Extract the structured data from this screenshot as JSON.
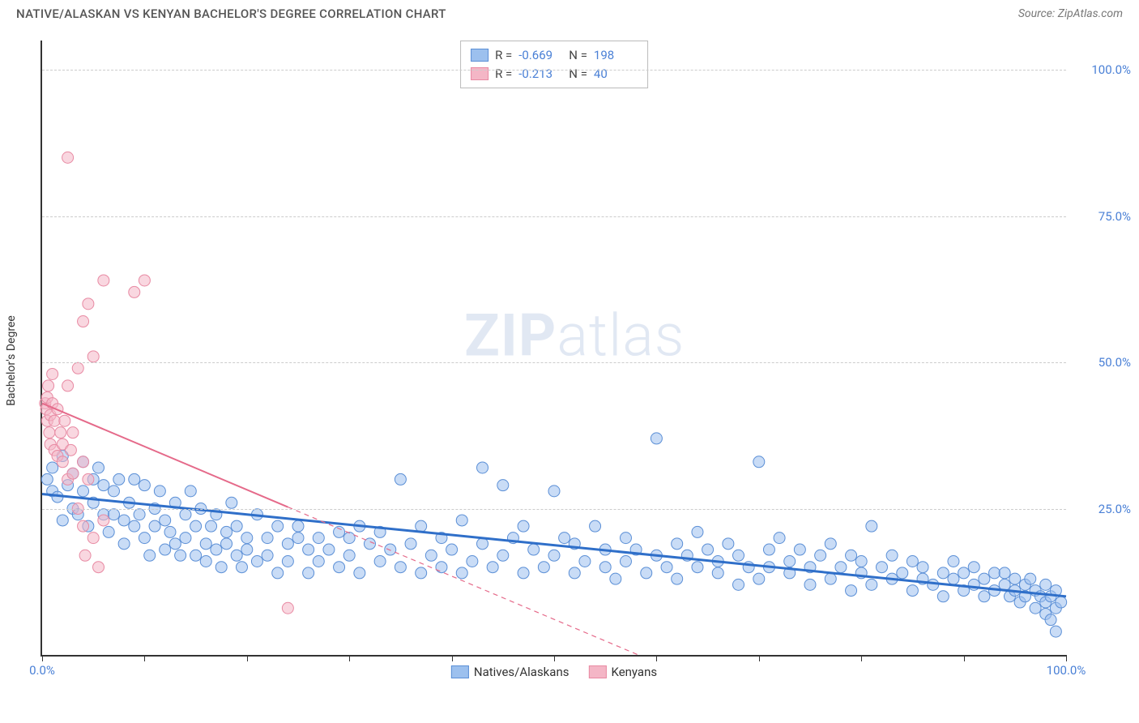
{
  "header": {
    "title": "NATIVE/ALASKAN VS KENYAN BACHELOR'S DEGREE CORRELATION CHART",
    "source_label": "Source:",
    "source_name": "ZipAtlas.com"
  },
  "watermark": {
    "part1": "ZIP",
    "part2": "atlas"
  },
  "chart": {
    "type": "scatter",
    "y_axis_label": "Bachelor's Degree",
    "xlim": [
      0,
      100
    ],
    "ylim": [
      0,
      105
    ],
    "x_ticks": [
      0,
      10,
      20,
      30,
      40,
      50,
      60,
      70,
      80,
      90,
      100
    ],
    "x_tick_labels_visible": {
      "0": "0.0%",
      "100": "100.0%"
    },
    "y_gridlines": [
      25,
      50,
      75,
      100
    ],
    "y_tick_labels": {
      "25": "25.0%",
      "50": "50.0%",
      "75": "75.0%",
      "100": "100.0%"
    },
    "background_color": "#ffffff",
    "grid_color": "#cccccc",
    "axis_color": "#333333",
    "tick_label_color": "#4a80d6",
    "marker_radius": 7,
    "marker_opacity": 0.55,
    "series": [
      {
        "key": "natives",
        "label": "Natives/Alaskans",
        "fill_color": "#9cc0ee",
        "stroke_color": "#5b8fd6",
        "trend_color": "#2f6fc9",
        "trend_width": 3,
        "trend_dash": "none",
        "trend": {
          "x1": 0,
          "y1": 27.5,
          "x2": 100,
          "y2": 10
        },
        "stats": {
          "R": "-0.669",
          "N": "198"
        },
        "points": [
          [
            0.5,
            30
          ],
          [
            1,
            32
          ],
          [
            1,
            28
          ],
          [
            1.5,
            27
          ],
          [
            2,
            23
          ],
          [
            2,
            34
          ],
          [
            2.5,
            29
          ],
          [
            3,
            31
          ],
          [
            3,
            25
          ],
          [
            3.5,
            24
          ],
          [
            4,
            33
          ],
          [
            4,
            28
          ],
          [
            4.5,
            22
          ],
          [
            5,
            30
          ],
          [
            5,
            26
          ],
          [
            5.5,
            32
          ],
          [
            6,
            24
          ],
          [
            6,
            29
          ],
          [
            6.5,
            21
          ],
          [
            7,
            24
          ],
          [
            7,
            28
          ],
          [
            7.5,
            30
          ],
          [
            8,
            23
          ],
          [
            8,
            19
          ],
          [
            8.5,
            26
          ],
          [
            9,
            22
          ],
          [
            9,
            30
          ],
          [
            9.5,
            24
          ],
          [
            10,
            20
          ],
          [
            10,
            29
          ],
          [
            10.5,
            17
          ],
          [
            11,
            25
          ],
          [
            11,
            22
          ],
          [
            11.5,
            28
          ],
          [
            12,
            18
          ],
          [
            12,
            23
          ],
          [
            12.5,
            21
          ],
          [
            13,
            26
          ],
          [
            13,
            19
          ],
          [
            13.5,
            17
          ],
          [
            14,
            24
          ],
          [
            14,
            20
          ],
          [
            14.5,
            28
          ],
          [
            15,
            17
          ],
          [
            15,
            22
          ],
          [
            15.5,
            25
          ],
          [
            16,
            19
          ],
          [
            16,
            16
          ],
          [
            16.5,
            22
          ],
          [
            17,
            24
          ],
          [
            17,
            18
          ],
          [
            17.5,
            15
          ],
          [
            18,
            21
          ],
          [
            18,
            19
          ],
          [
            18.5,
            26
          ],
          [
            19,
            17
          ],
          [
            19,
            22
          ],
          [
            19.5,
            15
          ],
          [
            20,
            20
          ],
          [
            20,
            18
          ],
          [
            21,
            24
          ],
          [
            21,
            16
          ],
          [
            22,
            20
          ],
          [
            22,
            17
          ],
          [
            23,
            22
          ],
          [
            23,
            14
          ],
          [
            24,
            19
          ],
          [
            24,
            16
          ],
          [
            25,
            20
          ],
          [
            25,
            22
          ],
          [
            26,
            14
          ],
          [
            26,
            18
          ],
          [
            27,
            20
          ],
          [
            27,
            16
          ],
          [
            28,
            18
          ],
          [
            29,
            21
          ],
          [
            29,
            15
          ],
          [
            30,
            17
          ],
          [
            30,
            20
          ],
          [
            31,
            22
          ],
          [
            31,
            14
          ],
          [
            32,
            19
          ],
          [
            33,
            16
          ],
          [
            33,
            21
          ],
          [
            34,
            18
          ],
          [
            35,
            30
          ],
          [
            35,
            15
          ],
          [
            36,
            19
          ],
          [
            37,
            22
          ],
          [
            37,
            14
          ],
          [
            38,
            17
          ],
          [
            39,
            20
          ],
          [
            39,
            15
          ],
          [
            40,
            18
          ],
          [
            41,
            23
          ],
          [
            41,
            14
          ],
          [
            42,
            16
          ],
          [
            43,
            32
          ],
          [
            43,
            19
          ],
          [
            44,
            15
          ],
          [
            45,
            29
          ],
          [
            45,
            17
          ],
          [
            46,
            20
          ],
          [
            47,
            14
          ],
          [
            47,
            22
          ],
          [
            48,
            18
          ],
          [
            49,
            15
          ],
          [
            50,
            28
          ],
          [
            50,
            17
          ],
          [
            51,
            20
          ],
          [
            52,
            14
          ],
          [
            52,
            19
          ],
          [
            53,
            16
          ],
          [
            54,
            22
          ],
          [
            55,
            15
          ],
          [
            55,
            18
          ],
          [
            56,
            13
          ],
          [
            57,
            20
          ],
          [
            57,
            16
          ],
          [
            58,
            18
          ],
          [
            59,
            14
          ],
          [
            60,
            37
          ],
          [
            60,
            17
          ],
          [
            61,
            15
          ],
          [
            62,
            19
          ],
          [
            62,
            13
          ],
          [
            63,
            17
          ],
          [
            64,
            21
          ],
          [
            64,
            15
          ],
          [
            65,
            18
          ],
          [
            66,
            14
          ],
          [
            66,
            16
          ],
          [
            67,
            19
          ],
          [
            68,
            12
          ],
          [
            68,
            17
          ],
          [
            69,
            15
          ],
          [
            70,
            33
          ],
          [
            70,
            13
          ],
          [
            71,
            18
          ],
          [
            71,
            15
          ],
          [
            72,
            20
          ],
          [
            73,
            14
          ],
          [
            73,
            16
          ],
          [
            74,
            18
          ],
          [
            75,
            12
          ],
          [
            75,
            15
          ],
          [
            76,
            17
          ],
          [
            77,
            13
          ],
          [
            77,
            19
          ],
          [
            78,
            15
          ],
          [
            79,
            11
          ],
          [
            79,
            17
          ],
          [
            80,
            14
          ],
          [
            80,
            16
          ],
          [
            81,
            22
          ],
          [
            81,
            12
          ],
          [
            82,
            15
          ],
          [
            83,
            17
          ],
          [
            83,
            13
          ],
          [
            84,
            14
          ],
          [
            85,
            11
          ],
          [
            85,
            16
          ],
          [
            86,
            13
          ],
          [
            86,
            15
          ],
          [
            87,
            12
          ],
          [
            88,
            14
          ],
          [
            88,
            10
          ],
          [
            89,
            16
          ],
          [
            89,
            13
          ],
          [
            90,
            11
          ],
          [
            90,
            14
          ],
          [
            91,
            12
          ],
          [
            91,
            15
          ],
          [
            92,
            13
          ],
          [
            92,
            10
          ],
          [
            93,
            14
          ],
          [
            93,
            11
          ],
          [
            94,
            12
          ],
          [
            94,
            14
          ],
          [
            94.5,
            10
          ],
          [
            95,
            13
          ],
          [
            95,
            11
          ],
          [
            95.5,
            9
          ],
          [
            96,
            12
          ],
          [
            96,
            10
          ],
          [
            96.5,
            13
          ],
          [
            97,
            8
          ],
          [
            97,
            11
          ],
          [
            97.5,
            10
          ],
          [
            98,
            7
          ],
          [
            98,
            9
          ],
          [
            98,
            12
          ],
          [
            98.5,
            6
          ],
          [
            98.5,
            10
          ],
          [
            99,
            8
          ],
          [
            99,
            11
          ],
          [
            99,
            4
          ],
          [
            99.5,
            9
          ]
        ]
      },
      {
        "key": "kenyans",
        "label": "Kenyans",
        "fill_color": "#f4b6c6",
        "stroke_color": "#e88aa3",
        "trend_color": "#e56a8a",
        "trend_width": 2,
        "trend_dash": "6,5",
        "trend_solid_until_x": 24,
        "trend": {
          "x1": 0,
          "y1": 43,
          "x2": 65,
          "y2": -5
        },
        "stats": {
          "R": "-0.213",
          "N": "40"
        },
        "points": [
          [
            0.3,
            43
          ],
          [
            0.4,
            42
          ],
          [
            0.5,
            40
          ],
          [
            0.5,
            44
          ],
          [
            0.6,
            46
          ],
          [
            0.7,
            38
          ],
          [
            0.8,
            41
          ],
          [
            0.8,
            36
          ],
          [
            1,
            43
          ],
          [
            1,
            48
          ],
          [
            1.2,
            35
          ],
          [
            1.2,
            40
          ],
          [
            1.5,
            42
          ],
          [
            1.5,
            34
          ],
          [
            1.8,
            38
          ],
          [
            2,
            36
          ],
          [
            2,
            33
          ],
          [
            2.2,
            40
          ],
          [
            2.5,
            30
          ],
          [
            2.5,
            46
          ],
          [
            2.8,
            35
          ],
          [
            3,
            31
          ],
          [
            3,
            38
          ],
          [
            3.5,
            25
          ],
          [
            3.5,
            49
          ],
          [
            4,
            22
          ],
          [
            4,
            57
          ],
          [
            4.2,
            17
          ],
          [
            4.5,
            30
          ],
          [
            4.5,
            60
          ],
          [
            5,
            20
          ],
          [
            5,
            51
          ],
          [
            5.5,
            15
          ],
          [
            6,
            64
          ],
          [
            6,
            23
          ],
          [
            9,
            62
          ],
          [
            10,
            64
          ],
          [
            2.5,
            85
          ],
          [
            4,
            33
          ],
          [
            24,
            8
          ]
        ]
      }
    ],
    "stats_legend": {
      "R_label": "R =",
      "N_label": "N ="
    },
    "series_legend": {
      "items": [
        "natives",
        "kenyans"
      ]
    }
  }
}
